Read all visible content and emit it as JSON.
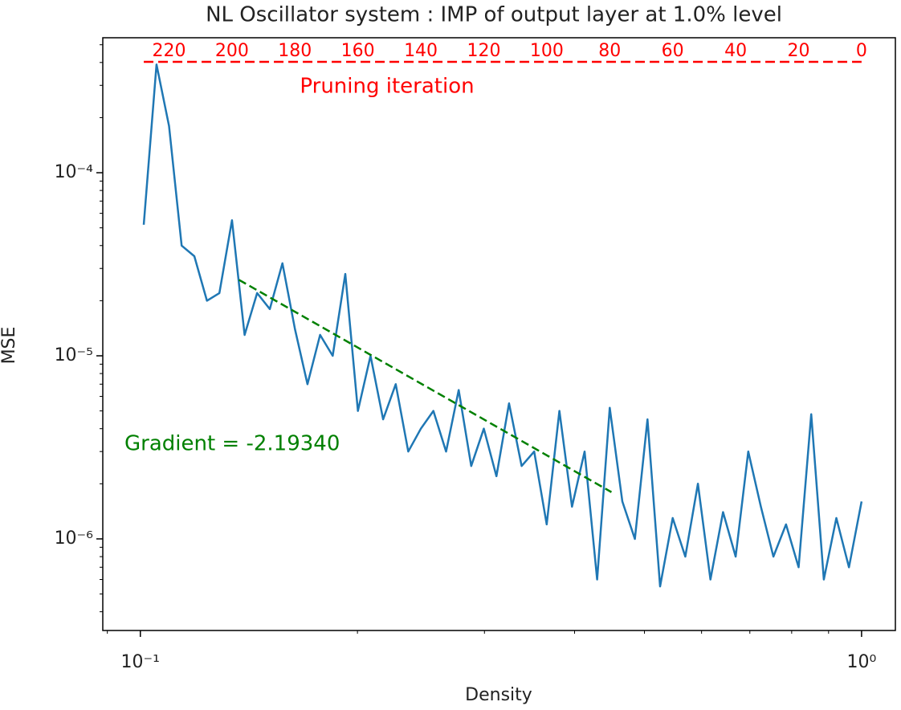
{
  "chart_data": {
    "type": "line",
    "title": "NL Oscillator system : IMP of output layer at 1.0% level",
    "xlabel": "Density",
    "ylabel": "MSE",
    "x": [
      1.0,
      0.9606,
      0.9227,
      0.8864,
      0.8515,
      0.8179,
      0.7857,
      0.7547,
      0.725,
      0.6964,
      0.669,
      0.6426,
      0.6173,
      0.593,
      0.5696,
      0.5472,
      0.5256,
      0.5049,
      0.485,
      0.4659,
      0.4475,
      0.4299,
      0.413,
      0.3967,
      0.3811,
      0.366,
      0.3516,
      0.3378,
      0.3245,
      0.3117,
      0.2994,
      0.2876,
      0.2763,
      0.2654,
      0.2549,
      0.2449,
      0.2352,
      0.226,
      0.2171,
      0.2085,
      0.2003,
      0.1924,
      0.1848,
      0.1775,
      0.1705,
      0.1638,
      0.1574,
      0.1512,
      0.1452,
      0.1395,
      0.134,
      0.1287,
      0.1237,
      0.1188,
      0.1141,
      0.1096,
      0.1053,
      0.1011
    ],
    "series": [
      {
        "color": "#1f77b4",
        "values": [
          1.6e-06,
          7e-07,
          1.3e-06,
          6e-07,
          4.8e-06,
          7e-07,
          1.2e-06,
          8e-07,
          1.5e-06,
          3e-06,
          8e-07,
          1.4e-06,
          6e-07,
          2e-06,
          8e-07,
          1.3e-06,
          5.5e-07,
          4.5e-06,
          1e-06,
          1.6e-06,
          5.2e-06,
          6e-07,
          3e-06,
          1.5e-06,
          5e-06,
          1.2e-06,
          3e-06,
          2.5e-06,
          5.5e-06,
          2.2e-06,
          4e-06,
          2.5e-06,
          6.5e-06,
          3e-06,
          5e-06,
          4e-06,
          3e-06,
          7e-06,
          4.5e-06,
          1e-05,
          5e-06,
          2.8e-05,
          1e-05,
          1.3e-05,
          7e-06,
          1.4e-05,
          3.2e-05,
          1.8e-05,
          2.2e-05,
          1.3e-05,
          5.5e-05,
          2.2e-05,
          2e-05,
          3.5e-05,
          4e-05,
          0.00018,
          0.00039,
          5.2e-05
        ]
      }
    ],
    "fit": {
      "color": "green",
      "x": [
        0.137,
        0.45
      ],
      "y": [
        2.6e-05,
        1.8e-06
      ],
      "label": "Gradient = -2.19340"
    },
    "top_axis": {
      "color": "red",
      "label": "Pruning iteration",
      "density_base": 0.99,
      "ticks": [
        220,
        200,
        180,
        160,
        140,
        120,
        100,
        80,
        60,
        40,
        20,
        0
      ]
    },
    "xscale": "log",
    "yscale": "log",
    "xlim": [
      0.0887,
      1.114
    ],
    "ylim": [
      3.16e-07,
      0.000546
    ],
    "xticks": [
      {
        "value": 0.1,
        "label": "10⁻¹"
      },
      {
        "value": 1,
        "label": "10⁰"
      }
    ],
    "yticks": [
      {
        "value": 1e-06,
        "label": "10⁻⁶"
      },
      {
        "value": 1e-05,
        "label": "10⁻⁵"
      },
      {
        "value": 0.0001,
        "label": "10⁻⁴"
      }
    ],
    "xminor": [
      0.09,
      0.2,
      0.3,
      0.4,
      0.5,
      0.6,
      0.7,
      0.8,
      0.9
    ],
    "yminor": [
      4e-07,
      5e-07,
      6e-07,
      7e-07,
      8e-07,
      9e-07,
      2e-06,
      3e-06,
      4e-06,
      5e-06,
      6e-06,
      7e-06,
      8e-06,
      9e-06,
      2e-05,
      3e-05,
      4e-05,
      5e-05,
      6e-05,
      7e-05,
      8e-05,
      9e-05,
      0.0002,
      0.0003,
      0.0004,
      0.0005
    ]
  }
}
